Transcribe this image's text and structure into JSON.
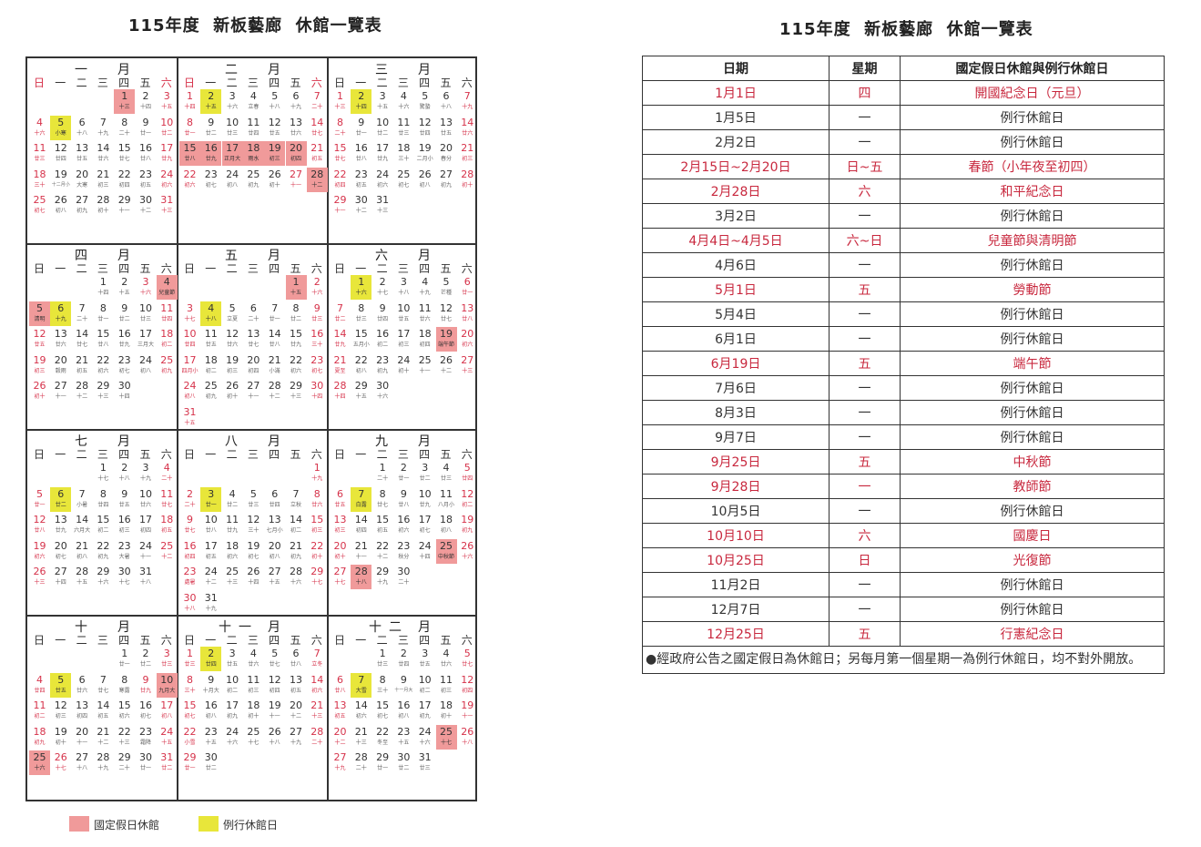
{
  "calendar_title": "115年度  新板藝廊  休館一覽表",
  "table_title": "115年度  新板藝廊  休館一覽表",
  "year": 2026,
  "weekdays": [
    "日",
    "一",
    "二",
    "三",
    "四",
    "五",
    "六"
  ],
  "month_word": "月",
  "colors": {
    "holiday_fill": "#f09a9a",
    "regular_fill": "#e8e63a",
    "red_text": "#d6324a"
  },
  "calendar": {
    "months": [
      {
        "name": "一",
        "holidays": [
          1
        ],
        "regular": [
          5
        ],
        "extra_red": [],
        "lunar": [
          "十三",
          "十四",
          "十五",
          "十六",
          "小寒",
          "十八",
          "十九",
          "二十",
          "廿一",
          "廿二",
          "廿三",
          "廿四",
          "廿五",
          "廿六",
          "廿七",
          "廿八",
          "廿九",
          "三十",
          "十二月小",
          "大寒",
          "初三",
          "初四",
          "初五",
          "初六",
          "初七",
          "初八",
          "初九",
          "初十",
          "十一",
          "十二",
          "十三"
        ]
      },
      {
        "name": "二",
        "holidays": [
          15,
          16,
          17,
          18,
          19,
          20,
          28
        ],
        "regular": [
          2
        ],
        "extra_red": [
          27
        ],
        "lunar": [
          "十四",
          "十五",
          "十六",
          "立春",
          "十八",
          "十九",
          "二十",
          "廿一",
          "廿二",
          "廿三",
          "廿四",
          "廿五",
          "廿六",
          "廿七",
          "廿八",
          "廿九",
          "正月大",
          "雨水",
          "初三",
          "初四",
          "初五",
          "初六",
          "初七",
          "初八",
          "初九",
          "初十",
          "十一",
          "十二"
        ]
      },
      {
        "name": "三",
        "holidays": [],
        "regular": [
          2
        ],
        "extra_red": [],
        "lunar": [
          "十三",
          "十四",
          "十五",
          "十六",
          "驚蟄",
          "十八",
          "十九",
          "二十",
          "廿一",
          "廿二",
          "廿三",
          "廿四",
          "廿五",
          "廿六",
          "廿七",
          "廿八",
          "廿九",
          "三十",
          "二月小",
          "春分",
          "初三",
          "初四",
          "初五",
          "初六",
          "初七",
          "初八",
          "初九",
          "初十",
          "十一",
          "十二",
          "十三"
        ]
      },
      {
        "name": "四",
        "holidays": [
          4,
          5
        ],
        "regular": [
          6
        ],
        "extra_red": [
          3
        ],
        "lunar": [
          "十四",
          "十五",
          "十六",
          "兒童節",
          "清明",
          "十九",
          "二十",
          "廿一",
          "廿二",
          "廿三",
          "廿四",
          "廿五",
          "廿六",
          "廿七",
          "廿八",
          "廿九",
          "三月大",
          "初二",
          "初三",
          "穀雨",
          "初五",
          "初六",
          "初七",
          "初八",
          "初九",
          "初十",
          "十一",
          "十二",
          "十三",
          "十四"
        ]
      },
      {
        "name": "五",
        "holidays": [
          1
        ],
        "regular": [
          4
        ],
        "extra_red": [],
        "lunar": [
          "十五",
          "十六",
          "十七",
          "十八",
          "立夏",
          "二十",
          "廿一",
          "廿二",
          "廿三",
          "廿四",
          "廿五",
          "廿六",
          "廿七",
          "廿八",
          "廿九",
          "三十",
          "四月小",
          "初二",
          "初三",
          "初四",
          "小滿",
          "初六",
          "初七",
          "初八",
          "初九",
          "初十",
          "十一",
          "十二",
          "十三",
          "十四",
          "十五"
        ]
      },
      {
        "name": "六",
        "holidays": [
          19
        ],
        "regular": [
          1
        ],
        "extra_red": [],
        "lunar": [
          "十六",
          "十七",
          "十八",
          "十九",
          "芒種",
          "廿一",
          "廿二",
          "廿三",
          "廿四",
          "廿五",
          "廿六",
          "廿七",
          "廿八",
          "廿九",
          "五月小",
          "初二",
          "初三",
          "初四",
          "端午節",
          "初六",
          "夏至",
          "初八",
          "初九",
          "初十",
          "十一",
          "十二",
          "十三",
          "十四",
          "十五",
          "十六"
        ]
      },
      {
        "name": "七",
        "holidays": [],
        "regular": [
          6
        ],
        "extra_red": [],
        "lunar": [
          "十七",
          "十八",
          "十九",
          "二十",
          "廿一",
          "廿二",
          "小暑",
          "廿四",
          "廿五",
          "廿六",
          "廿七",
          "廿八",
          "廿九",
          "六月大",
          "初二",
          "初三",
          "初四",
          "初五",
          "初六",
          "初七",
          "初八",
          "初九",
          "大暑",
          "十一",
          "十二",
          "十三",
          "十四",
          "十五",
          "十六",
          "十七",
          "十八"
        ]
      },
      {
        "name": "八",
        "holidays": [],
        "regular": [
          3
        ],
        "extra_red": [],
        "lunar": [
          "十九",
          "二十",
          "廿一",
          "廿二",
          "廿三",
          "廿四",
          "立秋",
          "廿六",
          "廿七",
          "廿八",
          "廿九",
          "三十",
          "七月小",
          "初二",
          "初三",
          "初四",
          "初五",
          "初六",
          "初七",
          "初八",
          "初九",
          "初十",
          "處暑",
          "十二",
          "十三",
          "十四",
          "十五",
          "十六",
          "十七",
          "十八",
          "十九"
        ]
      },
      {
        "name": "九",
        "holidays": [
          25,
          28
        ],
        "regular": [
          7
        ],
        "extra_red": [],
        "lunar": [
          "二十",
          "廿一",
          "廿二",
          "廿三",
          "廿四",
          "廿五",
          "白露",
          "廿七",
          "廿八",
          "廿九",
          "八月小",
          "初二",
          "初三",
          "初四",
          "初五",
          "初六",
          "初七",
          "初八",
          "初九",
          "初十",
          "十一",
          "十二",
          "秋分",
          "十四",
          "中秋節",
          "十六",
          "十七",
          "十八",
          "十九",
          "二十"
        ]
      },
      {
        "name": "十",
        "holidays": [
          10,
          25
        ],
        "regular": [
          5
        ],
        "extra_red": [
          9,
          26
        ],
        "lunar": [
          "廿一",
          "廿二",
          "廿三",
          "廿四",
          "廿五",
          "廿六",
          "廿七",
          "寒露",
          "廿九",
          "九月大",
          "初二",
          "初三",
          "初四",
          "初五",
          "初六",
          "初七",
          "初八",
          "初九",
          "初十",
          "十一",
          "十二",
          "十三",
          "霜降",
          "十五",
          "十六",
          "十七",
          "十八",
          "十九",
          "二十",
          "廿一",
          "廿二"
        ]
      },
      {
        "name": "十一",
        "holidays": [],
        "regular": [
          2
        ],
        "extra_red": [],
        "lunar": [
          "廿三",
          "廿四",
          "廿五",
          "廿六",
          "廿七",
          "廿八",
          "立冬",
          "三十",
          "十月大",
          "初二",
          "初三",
          "初四",
          "初五",
          "初六",
          "初七",
          "初八",
          "初九",
          "初十",
          "十一",
          "十二",
          "十三",
          "小雪",
          "十五",
          "十六",
          "十七",
          "十八",
          "十九",
          "二十",
          "廿一",
          "廿二"
        ]
      },
      {
        "name": "十二",
        "holidays": [
          25
        ],
        "regular": [
          7
        ],
        "extra_red": [],
        "lunar": [
          "廿三",
          "廿四",
          "廿五",
          "廿六",
          "廿七",
          "廿八",
          "大雪",
          "三十",
          "十一月大",
          "初二",
          "初三",
          "初四",
          "初五",
          "初六",
          "初七",
          "初八",
          "初九",
          "初十",
          "十一",
          "十二",
          "十三",
          "冬至",
          "十五",
          "十六",
          "十七",
          "十八",
          "十九",
          "二十",
          "廿一",
          "廿二",
          "廿三"
        ]
      }
    ]
  },
  "legend": {
    "holiday": "國定假日休館",
    "regular": "例行休館日"
  },
  "table": {
    "headers": [
      "日期",
      "星期",
      "國定假日休館與例行休館日"
    ],
    "rows": [
      {
        "date": "1月1日",
        "weekday": "四",
        "name": "開國紀念日（元旦）",
        "holiday": true
      },
      {
        "date": "1月5日",
        "weekday": "一",
        "name": "例行休館日",
        "holiday": false
      },
      {
        "date": "2月2日",
        "weekday": "一",
        "name": "例行休館日",
        "holiday": false
      },
      {
        "date": "2月15日~2月20日",
        "weekday": "日~五",
        "name": "春節（小年夜至初四）",
        "holiday": true
      },
      {
        "date": "2月28日",
        "weekday": "六",
        "name": "和平紀念日",
        "holiday": true
      },
      {
        "date": "3月2日",
        "weekday": "一",
        "name": "例行休館日",
        "holiday": false
      },
      {
        "date": "4月4日~4月5日",
        "weekday": "六~日",
        "name": "兒童節與清明節",
        "holiday": true
      },
      {
        "date": "4月6日",
        "weekday": "一",
        "name": "例行休館日",
        "holiday": false
      },
      {
        "date": "5月1日",
        "weekday": "五",
        "name": "勞動節",
        "holiday": true
      },
      {
        "date": "5月4日",
        "weekday": "一",
        "name": "例行休館日",
        "holiday": false
      },
      {
        "date": "6月1日",
        "weekday": "一",
        "name": "例行休館日",
        "holiday": false
      },
      {
        "date": "6月19日",
        "weekday": "五",
        "name": "端午節",
        "holiday": true
      },
      {
        "date": "7月6日",
        "weekday": "一",
        "name": "例行休館日",
        "holiday": false
      },
      {
        "date": "8月3日",
        "weekday": "一",
        "name": "例行休館日",
        "holiday": false
      },
      {
        "date": "9月7日",
        "weekday": "一",
        "name": "例行休館日",
        "holiday": false
      },
      {
        "date": "9月25日",
        "weekday": "五",
        "name": "中秋節",
        "holiday": true
      },
      {
        "date": "9月28日",
        "weekday": "一",
        "name": "教師節",
        "holiday": true
      },
      {
        "date": "10月5日",
        "weekday": "一",
        "name": "例行休館日",
        "holiday": false
      },
      {
        "date": "10月10日",
        "weekday": "六",
        "name": "國慶日",
        "holiday": true
      },
      {
        "date": "10月25日",
        "weekday": "日",
        "name": "光復節",
        "holiday": true
      },
      {
        "date": "11月2日",
        "weekday": "一",
        "name": "例行休館日",
        "holiday": false
      },
      {
        "date": "12月7日",
        "weekday": "一",
        "name": "例行休館日",
        "holiday": false
      },
      {
        "date": "12月25日",
        "weekday": "五",
        "name": "行憲紀念日",
        "holiday": true
      }
    ],
    "note": "●經政府公告之國定假日為休館日；另每月第一個星期一為例行休館日，均不對外開放。"
  }
}
